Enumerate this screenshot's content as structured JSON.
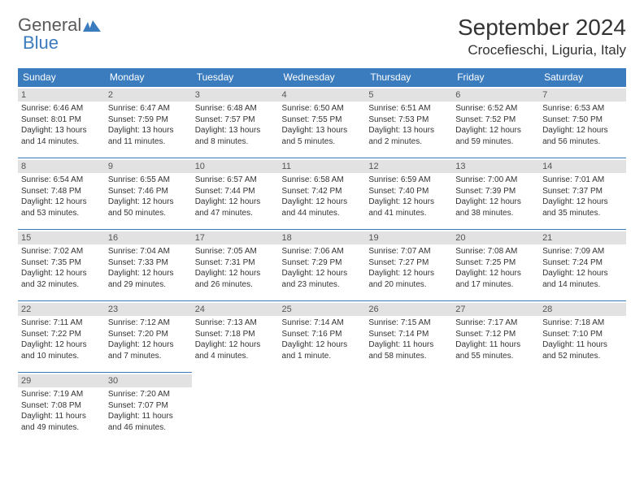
{
  "logo": {
    "word1": "General",
    "word2": "Blue"
  },
  "title": "September 2024",
  "location": "Crocefieschi, Liguria, Italy",
  "colors": {
    "header_bg": "#3b7cbf",
    "header_text": "#ffffff",
    "daynum_bg": "#e2e2e2",
    "cell_border": "#3b7cbf",
    "text": "#333333",
    "logo_gray": "#5a5a5a",
    "logo_blue": "#3b7cbf",
    "page_bg": "#ffffff"
  },
  "typography": {
    "title_fontsize": 28,
    "location_fontsize": 17,
    "dayheader_fontsize": 12,
    "daynum_fontsize": 11,
    "info_fontsize": 10
  },
  "layout": {
    "columns": 7,
    "rows": 5,
    "col_width_pct": 14.28
  },
  "day_headers": [
    "Sunday",
    "Monday",
    "Tuesday",
    "Wednesday",
    "Thursday",
    "Friday",
    "Saturday"
  ],
  "days": [
    {
      "n": "1",
      "sr": "6:46 AM",
      "ss": "8:01 PM",
      "dl": "13 hours and 14 minutes."
    },
    {
      "n": "2",
      "sr": "6:47 AM",
      "ss": "7:59 PM",
      "dl": "13 hours and 11 minutes."
    },
    {
      "n": "3",
      "sr": "6:48 AM",
      "ss": "7:57 PM",
      "dl": "13 hours and 8 minutes."
    },
    {
      "n": "4",
      "sr": "6:50 AM",
      "ss": "7:55 PM",
      "dl": "13 hours and 5 minutes."
    },
    {
      "n": "5",
      "sr": "6:51 AM",
      "ss": "7:53 PM",
      "dl": "13 hours and 2 minutes."
    },
    {
      "n": "6",
      "sr": "6:52 AM",
      "ss": "7:52 PM",
      "dl": "12 hours and 59 minutes."
    },
    {
      "n": "7",
      "sr": "6:53 AM",
      "ss": "7:50 PM",
      "dl": "12 hours and 56 minutes."
    },
    {
      "n": "8",
      "sr": "6:54 AM",
      "ss": "7:48 PM",
      "dl": "12 hours and 53 minutes."
    },
    {
      "n": "9",
      "sr": "6:55 AM",
      "ss": "7:46 PM",
      "dl": "12 hours and 50 minutes."
    },
    {
      "n": "10",
      "sr": "6:57 AM",
      "ss": "7:44 PM",
      "dl": "12 hours and 47 minutes."
    },
    {
      "n": "11",
      "sr": "6:58 AM",
      "ss": "7:42 PM",
      "dl": "12 hours and 44 minutes."
    },
    {
      "n": "12",
      "sr": "6:59 AM",
      "ss": "7:40 PM",
      "dl": "12 hours and 41 minutes."
    },
    {
      "n": "13",
      "sr": "7:00 AM",
      "ss": "7:39 PM",
      "dl": "12 hours and 38 minutes."
    },
    {
      "n": "14",
      "sr": "7:01 AM",
      "ss": "7:37 PM",
      "dl": "12 hours and 35 minutes."
    },
    {
      "n": "15",
      "sr": "7:02 AM",
      "ss": "7:35 PM",
      "dl": "12 hours and 32 minutes."
    },
    {
      "n": "16",
      "sr": "7:04 AM",
      "ss": "7:33 PM",
      "dl": "12 hours and 29 minutes."
    },
    {
      "n": "17",
      "sr": "7:05 AM",
      "ss": "7:31 PM",
      "dl": "12 hours and 26 minutes."
    },
    {
      "n": "18",
      "sr": "7:06 AM",
      "ss": "7:29 PM",
      "dl": "12 hours and 23 minutes."
    },
    {
      "n": "19",
      "sr": "7:07 AM",
      "ss": "7:27 PM",
      "dl": "12 hours and 20 minutes."
    },
    {
      "n": "20",
      "sr": "7:08 AM",
      "ss": "7:25 PM",
      "dl": "12 hours and 17 minutes."
    },
    {
      "n": "21",
      "sr": "7:09 AM",
      "ss": "7:24 PM",
      "dl": "12 hours and 14 minutes."
    },
    {
      "n": "22",
      "sr": "7:11 AM",
      "ss": "7:22 PM",
      "dl": "12 hours and 10 minutes."
    },
    {
      "n": "23",
      "sr": "7:12 AM",
      "ss": "7:20 PM",
      "dl": "12 hours and 7 minutes."
    },
    {
      "n": "24",
      "sr": "7:13 AM",
      "ss": "7:18 PM",
      "dl": "12 hours and 4 minutes."
    },
    {
      "n": "25",
      "sr": "7:14 AM",
      "ss": "7:16 PM",
      "dl": "12 hours and 1 minute."
    },
    {
      "n": "26",
      "sr": "7:15 AM",
      "ss": "7:14 PM",
      "dl": "11 hours and 58 minutes."
    },
    {
      "n": "27",
      "sr": "7:17 AM",
      "ss": "7:12 PM",
      "dl": "11 hours and 55 minutes."
    },
    {
      "n": "28",
      "sr": "7:18 AM",
      "ss": "7:10 PM",
      "dl": "11 hours and 52 minutes."
    },
    {
      "n": "29",
      "sr": "7:19 AM",
      "ss": "7:08 PM",
      "dl": "11 hours and 49 minutes."
    },
    {
      "n": "30",
      "sr": "7:20 AM",
      "ss": "7:07 PM",
      "dl": "11 hours and 46 minutes."
    }
  ],
  "labels": {
    "sunrise": "Sunrise:",
    "sunset": "Sunset:",
    "daylight": "Daylight:"
  }
}
